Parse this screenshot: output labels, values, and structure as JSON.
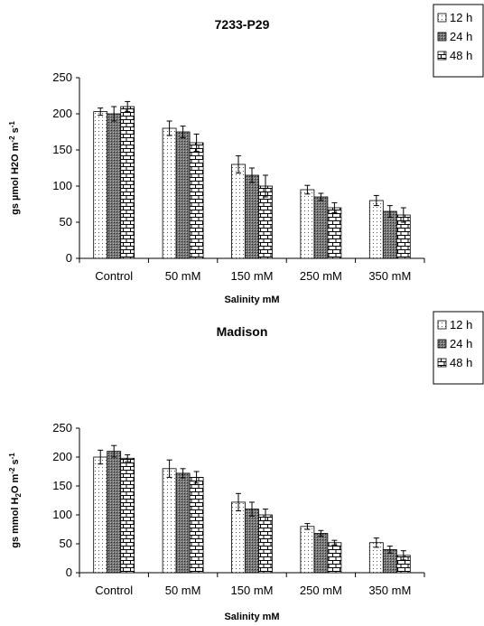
{
  "chart_data": [
    {
      "type": "bar",
      "title": "7233-P29",
      "xlabel": "Salinity mM",
      "ylabel_parts": [
        {
          "text": "gs  µmol H2O m"
        },
        {
          "text": "-2",
          "shift": "sup"
        },
        {
          "text": " s"
        },
        {
          "text": "-1",
          "shift": "sup"
        }
      ],
      "categories": [
        "Control",
        "50 mM",
        "150 mM",
        "250 mM",
        "350 mM"
      ],
      "series": [
        {
          "name": "12 h",
          "pattern": "dots",
          "values": [
            203,
            180,
            130,
            95,
            80
          ],
          "errors": [
            5,
            10,
            12,
            6,
            7
          ]
        },
        {
          "name": "24 h",
          "pattern": "hatch",
          "values": [
            200,
            175,
            115,
            85,
            65
          ],
          "errors": [
            10,
            8,
            10,
            5,
            8
          ]
        },
        {
          "name": "48 h",
          "pattern": "brick",
          "values": [
            210,
            160,
            100,
            70,
            60
          ],
          "errors": [
            7,
            12,
            15,
            7,
            10
          ]
        }
      ],
      "ylim": [
        0,
        250
      ],
      "yticks": [
        0,
        50,
        100,
        150,
        200,
        250
      ],
      "legend": "top-right"
    },
    {
      "type": "bar",
      "title": "Madison",
      "xlabel": "Salinity mM",
      "ylabel_parts": [
        {
          "text": "gs  mmol H"
        },
        {
          "text": "2",
          "shift": "sub"
        },
        {
          "text": "O  m"
        },
        {
          "text": "-2",
          "shift": "sup"
        },
        {
          "text": "  s"
        },
        {
          "text": "-1",
          "shift": "sup"
        }
      ],
      "categories": [
        "Control",
        "50 mM",
        "150 mM",
        "250 mM",
        "350 mM"
      ],
      "series": [
        {
          "name": "12 h",
          "pattern": "dots",
          "values": [
            200,
            180,
            122,
            80,
            52
          ],
          "errors": [
            12,
            15,
            15,
            5,
            8
          ]
        },
        {
          "name": "24 h",
          "pattern": "hatch",
          "values": [
            210,
            172,
            110,
            68,
            40
          ],
          "errors": [
            10,
            8,
            12,
            5,
            6
          ]
        },
        {
          "name": "48 h",
          "pattern": "brick",
          "values": [
            198,
            165,
            100,
            52,
            30
          ],
          "errors": [
            6,
            10,
            10,
            4,
            8
          ]
        }
      ],
      "ylim": [
        0,
        250
      ],
      "yticks": [
        0,
        50,
        100,
        150,
        200,
        250
      ],
      "legend": "top-right"
    }
  ]
}
